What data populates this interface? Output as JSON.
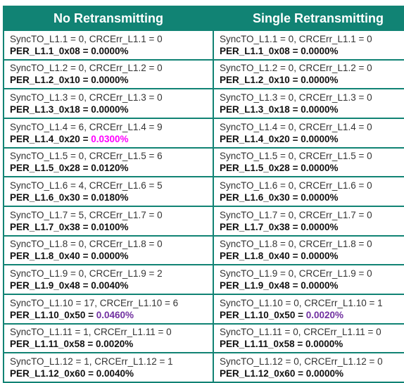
{
  "headers": [
    "No Retransmitting",
    "Single Retransmitting"
  ],
  "colors": {
    "header_bg": "#118374",
    "border": "#118374",
    "magenta": "#ff00ff",
    "purple": "#7030a0",
    "text": "#111111"
  },
  "rows": [
    {
      "left": {
        "line1": "SyncTO_L1.1 = 0, CRCErr_L1.1 = 0",
        "per_label": "PER_L1.1_0x08 = ",
        "per_value": "0.0000%"
      },
      "right": {
        "line1": "SyncTO_L1.1 = 0, CRCErr_L1.1 = 0",
        "per_label": "PER_L1.1_0x08 = ",
        "per_value": "0.0000%"
      }
    },
    {
      "left": {
        "line1": "SyncTO_L1.2 = 0, CRCErr_L1.2 = 0",
        "per_label": "PER_L1.2_0x10 = ",
        "per_value": "0.0000%"
      },
      "right": {
        "line1": "SyncTO_L1.2 = 0, CRCErr_L1.2 = 0",
        "per_label": "PER_L1.2_0x10 = ",
        "per_value": "0.0000%"
      }
    },
    {
      "left": {
        "line1": "SyncTO_L1.3 = 0, CRCErr_L1.3 = 0",
        "per_label": "PER_L1.3_0x18 = ",
        "per_value": "0.0000%"
      },
      "right": {
        "line1": "SyncTO_L1.3 = 0, CRCErr_L1.3 = 0",
        "per_label": "PER_L1.3_0x18 = ",
        "per_value": "0.0000%"
      }
    },
    {
      "left": {
        "line1": "SyncTO_L1.4 = 6, CRCErr_L1.4 = 9",
        "per_label": "PER_L1.4_0x20 = ",
        "per_value": "0.0300%",
        "highlight": "magenta"
      },
      "right": {
        "line1": "SyncTO_L1.4 = 0, CRCErr_L1.4 = 0",
        "per_label": "PER_L1.4_0x20 = ",
        "per_value": "0.0000%"
      }
    },
    {
      "left": {
        "line1": "SyncTO_L1.5 = 0, CRCErr_L1.5 = 6",
        "per_label": "PER_L1.5_0x28 = ",
        "per_value": "0.0120%"
      },
      "right": {
        "line1": "SyncTO_L1.5 = 0, CRCErr_L1.5 = 0",
        "per_label": "PER_L1.5_0x28 = ",
        "per_value": "0.0000%"
      }
    },
    {
      "left": {
        "line1": "SyncTO_L1.6 = 4, CRCErr_L1.6 = 5",
        "per_label": "PER_L1.6_0x30 = ",
        "per_value": "0.0180%"
      },
      "right": {
        "line1": "SyncTO_L1.6 = 0, CRCErr_L1.6 = 0",
        "per_label": "PER_L1.6_0x30 = ",
        "per_value": "0.0000%"
      }
    },
    {
      "left": {
        "line1": "SyncTO_L1.7 = 5, CRCErr_L1.7 = 0",
        "per_label": "PER_L1.7_0x38 = ",
        "per_value": "0.0100%"
      },
      "right": {
        "line1": "SyncTO_L1.7 = 0, CRCErr_L1.7 = 0",
        "per_label": "PER_L1.7_0x38 = ",
        "per_value": "0.0000%"
      }
    },
    {
      "left": {
        "line1": "SyncTO_L1.8 = 0, CRCErr_L1.8 = 0",
        "per_label": "PER_L1.8_0x40 = ",
        "per_value": "0.0000%"
      },
      "right": {
        "line1": "SyncTO_L1.8 = 0, CRCErr_L1.8 = 0",
        "per_label": "PER_L1.8_0x40 = ",
        "per_value": "0.0000%"
      }
    },
    {
      "left": {
        "line1": "SyncTO_L1.9 = 0, CRCErr_L1.9 = 2",
        "per_label": "PER_L1.9_0x48 = ",
        "per_value": "0.0040%"
      },
      "right": {
        "line1": "SyncTO_L1.9 = 0, CRCErr_L1.9 = 0",
        "per_label": "PER_L1.9_0x48 = ",
        "per_value": "0.0000%"
      }
    },
    {
      "left": {
        "line1": "SyncTO_L1.10 = 17, CRCErr_L1.10 = 6",
        "per_label": "PER_L1.10_0x50 = ",
        "per_value": "0.0460%",
        "highlight": "purple"
      },
      "right": {
        "line1": "SyncTO_L1.10 = 0, CRCErr_L1.10 = 1",
        "per_label": "PER_L1.10_0x50 = ",
        "per_value": "0.0020%",
        "highlight": "purple"
      }
    },
    {
      "left": {
        "line1": "SyncTO_L1.11 = 1, CRCErr_L1.11 = 0",
        "per_label": "PER_L1.11_0x58 = ",
        "per_value": "0.0020%"
      },
      "right": {
        "line1": "SyncTO_L1.11 = 0, CRCErr_L1.11 = 0",
        "per_label": "PER_L1.11_0x58 = ",
        "per_value": "0.0000%"
      }
    },
    {
      "left": {
        "line1": "SyncTO_L1.12 = 1, CRCErr_L1.12 = 1",
        "per_label": "PER_L1.12_0x60 = ",
        "per_value": "0.0040%"
      },
      "right": {
        "line1": "SyncTO_L1.12 = 0, CRCErr_L1.12 = 0",
        "per_label": "PER_L1.12_0x60 = ",
        "per_value": "0.0000%"
      }
    }
  ]
}
